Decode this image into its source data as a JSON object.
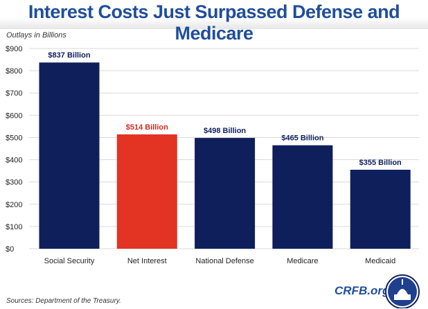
{
  "chart_data": {
    "type": "bar",
    "title": "Interest Costs Just Surpassed Defense and Medicare",
    "ylabel": "Outlays in Billions",
    "categories": [
      "Social Security",
      "Net Interest",
      "National Defense",
      "Medicare",
      "Medicaid"
    ],
    "values": [
      837,
      514,
      498,
      465,
      355
    ],
    "data_labels": [
      "$837 Billion",
      "$514 Billion",
      "$498 Billion",
      "$465 Billion",
      "$355 Billion"
    ],
    "yticks": [
      "$0",
      "$100",
      "$200",
      "$300",
      "$400",
      "$500",
      "$600",
      "$700",
      "$800",
      "$900"
    ],
    "ylim": [
      0,
      900
    ],
    "grid": true,
    "colors": {
      "default": "#0e1f5b",
      "highlight": "#e23323",
      "highlight_label": "#d42a1e",
      "label": "#0e1f5b"
    },
    "highlight_index": 1
  },
  "footer": {
    "source": "Sources: Department of the Treasury.",
    "brand": "CRFB.org",
    "logo_icon": "capitol-dome-logo"
  }
}
